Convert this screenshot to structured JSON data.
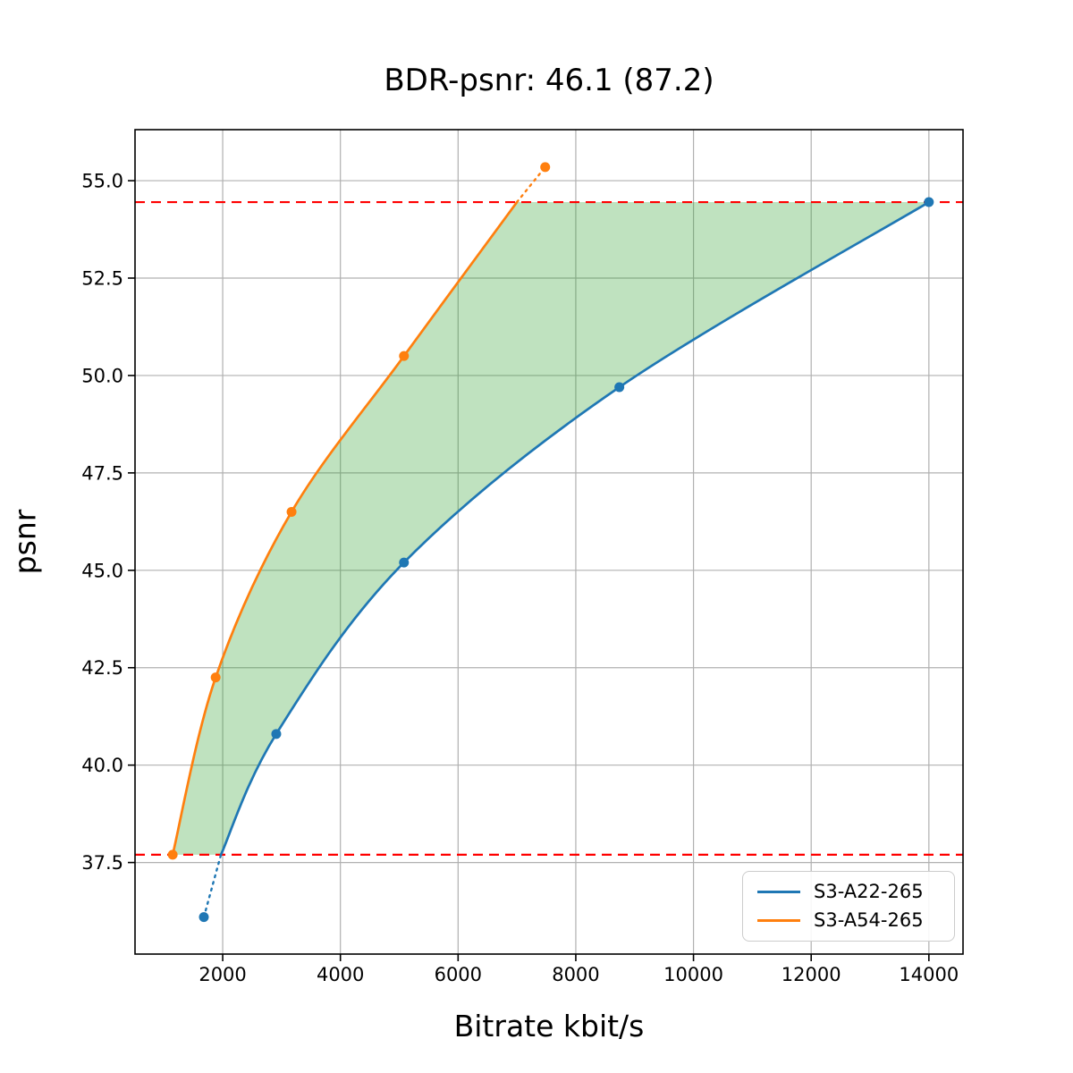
{
  "title": "BDR-psnr: 46.1 (87.2)",
  "chart_data": {
    "type": "line",
    "title": "BDR-psnr: 46.1 (87.2)",
    "xlabel": "Bitrate kbit/s",
    "ylabel": "psnr",
    "xlim": [
      510,
      14580
    ],
    "ylim": [
      35.15,
      56.31
    ],
    "grid": true,
    "grid_color": "#b0b0b0",
    "legend_position": "lower right",
    "x_tick_values": [
      2000,
      4000,
      6000,
      8000,
      10000,
      12000,
      14000
    ],
    "x_tick_labels": [
      "2000",
      "4000",
      "6000",
      "8000",
      "10000",
      "12000",
      "14000"
    ],
    "y_tick_values": [
      37.5,
      40.0,
      42.5,
      45.0,
      47.5,
      50.0,
      52.5,
      55.0
    ],
    "y_tick_labels": [
      "37.5",
      "40.0",
      "42.5",
      "45.0",
      "47.5",
      "50.0",
      "52.5",
      "55.0"
    ],
    "series": [
      {
        "name": "S3-A22-265",
        "color": "#1f77b4",
        "points": [
          [
            1680,
            36.1
          ],
          [
            2910,
            40.8
          ],
          [
            5080,
            45.2
          ],
          [
            8740,
            49.7
          ],
          [
            14000,
            54.45
          ]
        ],
        "solid_points": [
          [
            1970,
            37.7
          ],
          [
            2910,
            40.8
          ],
          [
            5080,
            45.2
          ],
          [
            8740,
            49.7
          ],
          [
            14000,
            54.45
          ]
        ],
        "dotted_points": [
          [
            1680,
            36.1
          ],
          [
            1970,
            37.7
          ]
        ]
      },
      {
        "name": "S3-A54-265",
        "color": "#ff7f0e",
        "points": [
          [
            1150,
            37.7
          ],
          [
            1880,
            42.25
          ],
          [
            3170,
            46.5
          ],
          [
            5080,
            50.5
          ],
          [
            7480,
            55.35
          ]
        ],
        "solid_points": [
          [
            1150,
            37.7
          ],
          [
            1880,
            42.25
          ],
          [
            3170,
            46.5
          ],
          [
            5080,
            50.5
          ],
          [
            7000,
            54.45
          ]
        ],
        "dotted_points": [
          [
            7000,
            54.45
          ],
          [
            7480,
            55.35
          ]
        ]
      }
    ],
    "bd_ref_lines": {
      "upper": 54.45,
      "lower": 37.7,
      "color": "#ff0000",
      "style": "dashed"
    },
    "shaded_region": {
      "between": [
        "S3-A54-265",
        "S3-A22-265"
      ],
      "y_range": [
        37.7,
        54.45
      ],
      "color": "#2ca02c",
      "opacity": 0.3
    }
  },
  "legend": {
    "items": [
      {
        "label": "S3-A22-265",
        "color": "#1f77b4"
      },
      {
        "label": "S3-A54-265",
        "color": "#ff7f0e"
      }
    ]
  }
}
